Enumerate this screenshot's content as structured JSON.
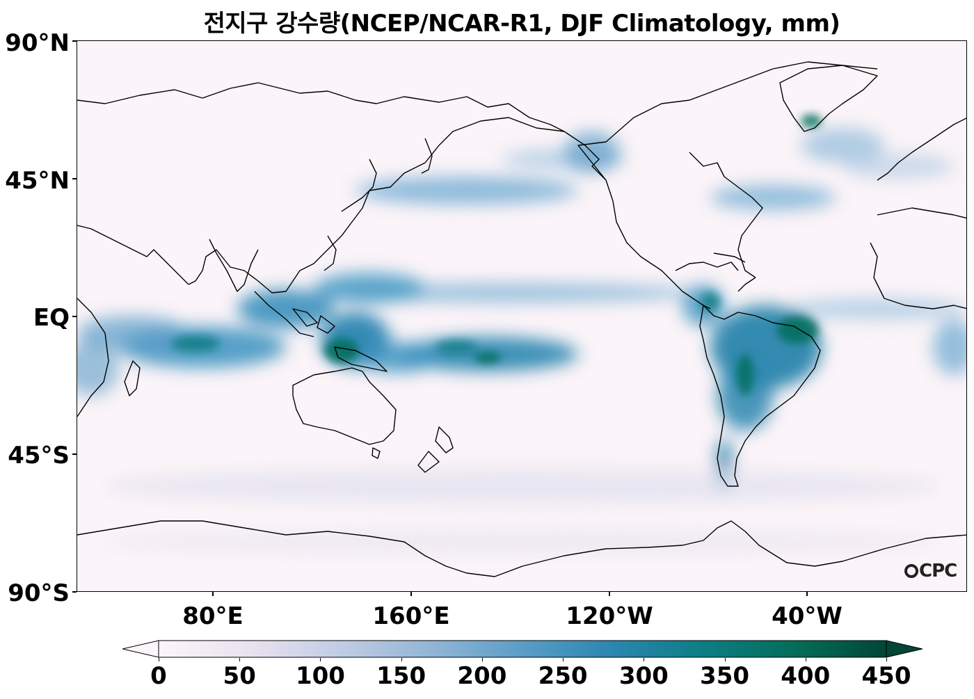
{
  "title": "전지구 강수량(NCEP/NCAR-R1, DJF Climatology, mm)",
  "y_ticks": [
    "90°N",
    "45°N",
    "EQ",
    "45°S",
    "90°S"
  ],
  "x_ticks": [
    "80°E",
    "160°E",
    "120°W",
    "40°W"
  ],
  "logo_text": "CPC",
  "colorbar": {
    "ticks": [
      "0",
      "50",
      "100",
      "150",
      "200",
      "250",
      "300",
      "350",
      "400",
      "450"
    ],
    "extend": "both",
    "colors": [
      "#fcf5fa",
      "#e9e2f0",
      "#c1cce4",
      "#92b5d7",
      "#5a9dc7",
      "#2a86b0",
      "#0c7d84",
      "#036d59",
      "#014636"
    ]
  },
  "map": {
    "projection": "PlateCarree (central longitude 200°E)",
    "lon_range": [
      20,
      380
    ],
    "lat_range": [
      -90,
      90
    ],
    "precip_unit": "mm",
    "season": "DJF"
  }
}
